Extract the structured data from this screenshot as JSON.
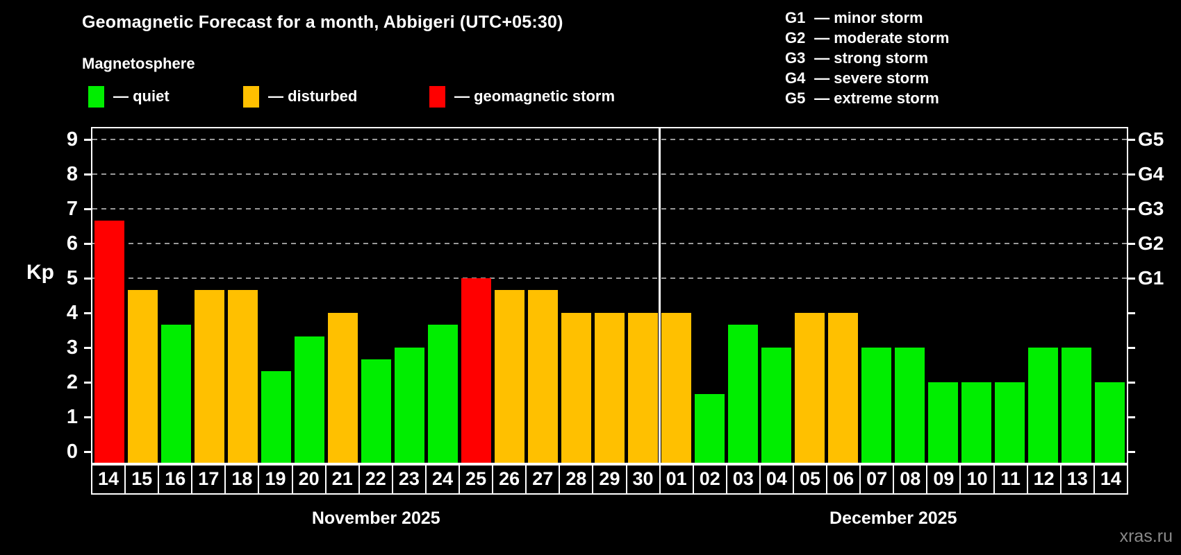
{
  "title": "Geomagnetic Forecast for a month, Abbigeri (UTC+05:30)",
  "subtitle": "Magnetosphere",
  "ylabel": "Kp",
  "watermark": "xras.ru",
  "colors": {
    "quiet": "#00ee00",
    "disturbed": "#ffc000",
    "storm": "#ff0000",
    "background": "#000000",
    "grid": "#999999",
    "axis": "#ffffff",
    "watermark": "#8a8a8a"
  },
  "bar_legend": [
    {
      "status": "quiet",
      "label": "— quiet"
    },
    {
      "status": "disturbed",
      "label": "— disturbed"
    },
    {
      "status": "storm",
      "label": "— geomagnetic storm"
    }
  ],
  "storm_scale_legend": [
    {
      "code": "G1",
      "label": "— minor storm"
    },
    {
      "code": "G2",
      "label": "— moderate storm"
    },
    {
      "code": "G3",
      "label": "— strong storm"
    },
    {
      "code": "G4",
      "label": "— severe storm"
    },
    {
      "code": "G5",
      "label": "— extreme storm"
    }
  ],
  "chart_data": {
    "type": "bar",
    "title": "Geomagnetic Forecast for a month, Abbigeri (UTC+05:30)",
    "xlabel": "",
    "ylabel": "Kp",
    "ylim": [
      0,
      9
    ],
    "yticks": [
      0,
      1,
      2,
      3,
      4,
      5,
      6,
      7,
      8,
      9
    ],
    "grid_levels": [
      5,
      6,
      7,
      8,
      9
    ],
    "grid": "dashed-horizontal-at-storm-levels-only",
    "right_axis_labels": [
      {
        "kp": 5,
        "label": "G1"
      },
      {
        "kp": 6,
        "label": "G2"
      },
      {
        "kp": 7,
        "label": "G3"
      },
      {
        "kp": 8,
        "label": "G4"
      },
      {
        "kp": 9,
        "label": "G5"
      }
    ],
    "months": [
      {
        "label": "November 2025",
        "days": [
          "14",
          "15",
          "16",
          "17",
          "18",
          "19",
          "20",
          "21",
          "22",
          "23",
          "24",
          "25",
          "26",
          "27",
          "28",
          "29",
          "30"
        ],
        "values": [
          6.67,
          4.67,
          3.67,
          4.67,
          4.67,
          2.33,
          3.33,
          4.0,
          2.67,
          3.0,
          3.67,
          5.0,
          4.67,
          4.67,
          4.0,
          4.0,
          4.0
        ],
        "statuses": [
          "storm",
          "disturbed",
          "quiet",
          "disturbed",
          "disturbed",
          "quiet",
          "quiet",
          "disturbed",
          "quiet",
          "quiet",
          "quiet",
          "storm",
          "disturbed",
          "disturbed",
          "disturbed",
          "disturbed",
          "disturbed"
        ]
      },
      {
        "label": "December 2025",
        "days": [
          "01",
          "02",
          "03",
          "04",
          "05",
          "06",
          "07",
          "08",
          "09",
          "10",
          "11",
          "12",
          "13",
          "14"
        ],
        "values": [
          4.0,
          1.67,
          3.67,
          3.0,
          4.0,
          4.0,
          3.0,
          3.0,
          2.0,
          2.0,
          2.0,
          3.0,
          3.0,
          2.0
        ],
        "statuses": [
          "disturbed",
          "quiet",
          "quiet",
          "quiet",
          "disturbed",
          "disturbed",
          "quiet",
          "quiet",
          "quiet",
          "quiet",
          "quiet",
          "quiet",
          "quiet",
          "quiet"
        ]
      }
    ]
  }
}
